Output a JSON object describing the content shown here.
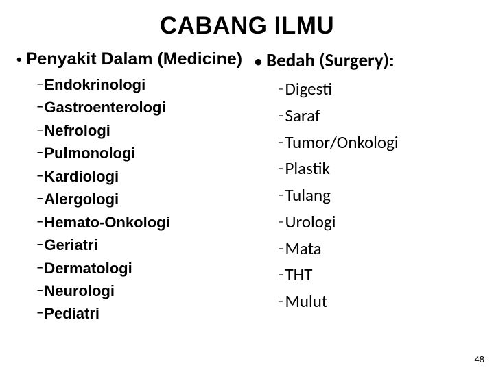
{
  "title": "CABANG ILMU",
  "left": {
    "heading": "Penyakit Dalam (Medicine)",
    "items": [
      "Endokrinologi",
      "Gastroenterologi",
      "Nefrologi",
      "Pulmonologi",
      "Kardiologi",
      "Alergologi",
      "Hemato-Onkologi",
      "Geriatri",
      "Dermatologi",
      "Neurologi",
      "Pediatri"
    ]
  },
  "right": {
    "heading": "Bedah (Surgery):",
    "items": [
      "Digesti",
      "Saraf",
      "Tumor/Onkologi",
      "Plastik",
      "Tulang",
      "Urologi",
      "Mata",
      "THT",
      "Mulut"
    ]
  },
  "page_number": "48",
  "colors": {
    "background": "#ffffff",
    "text": "#000000"
  }
}
